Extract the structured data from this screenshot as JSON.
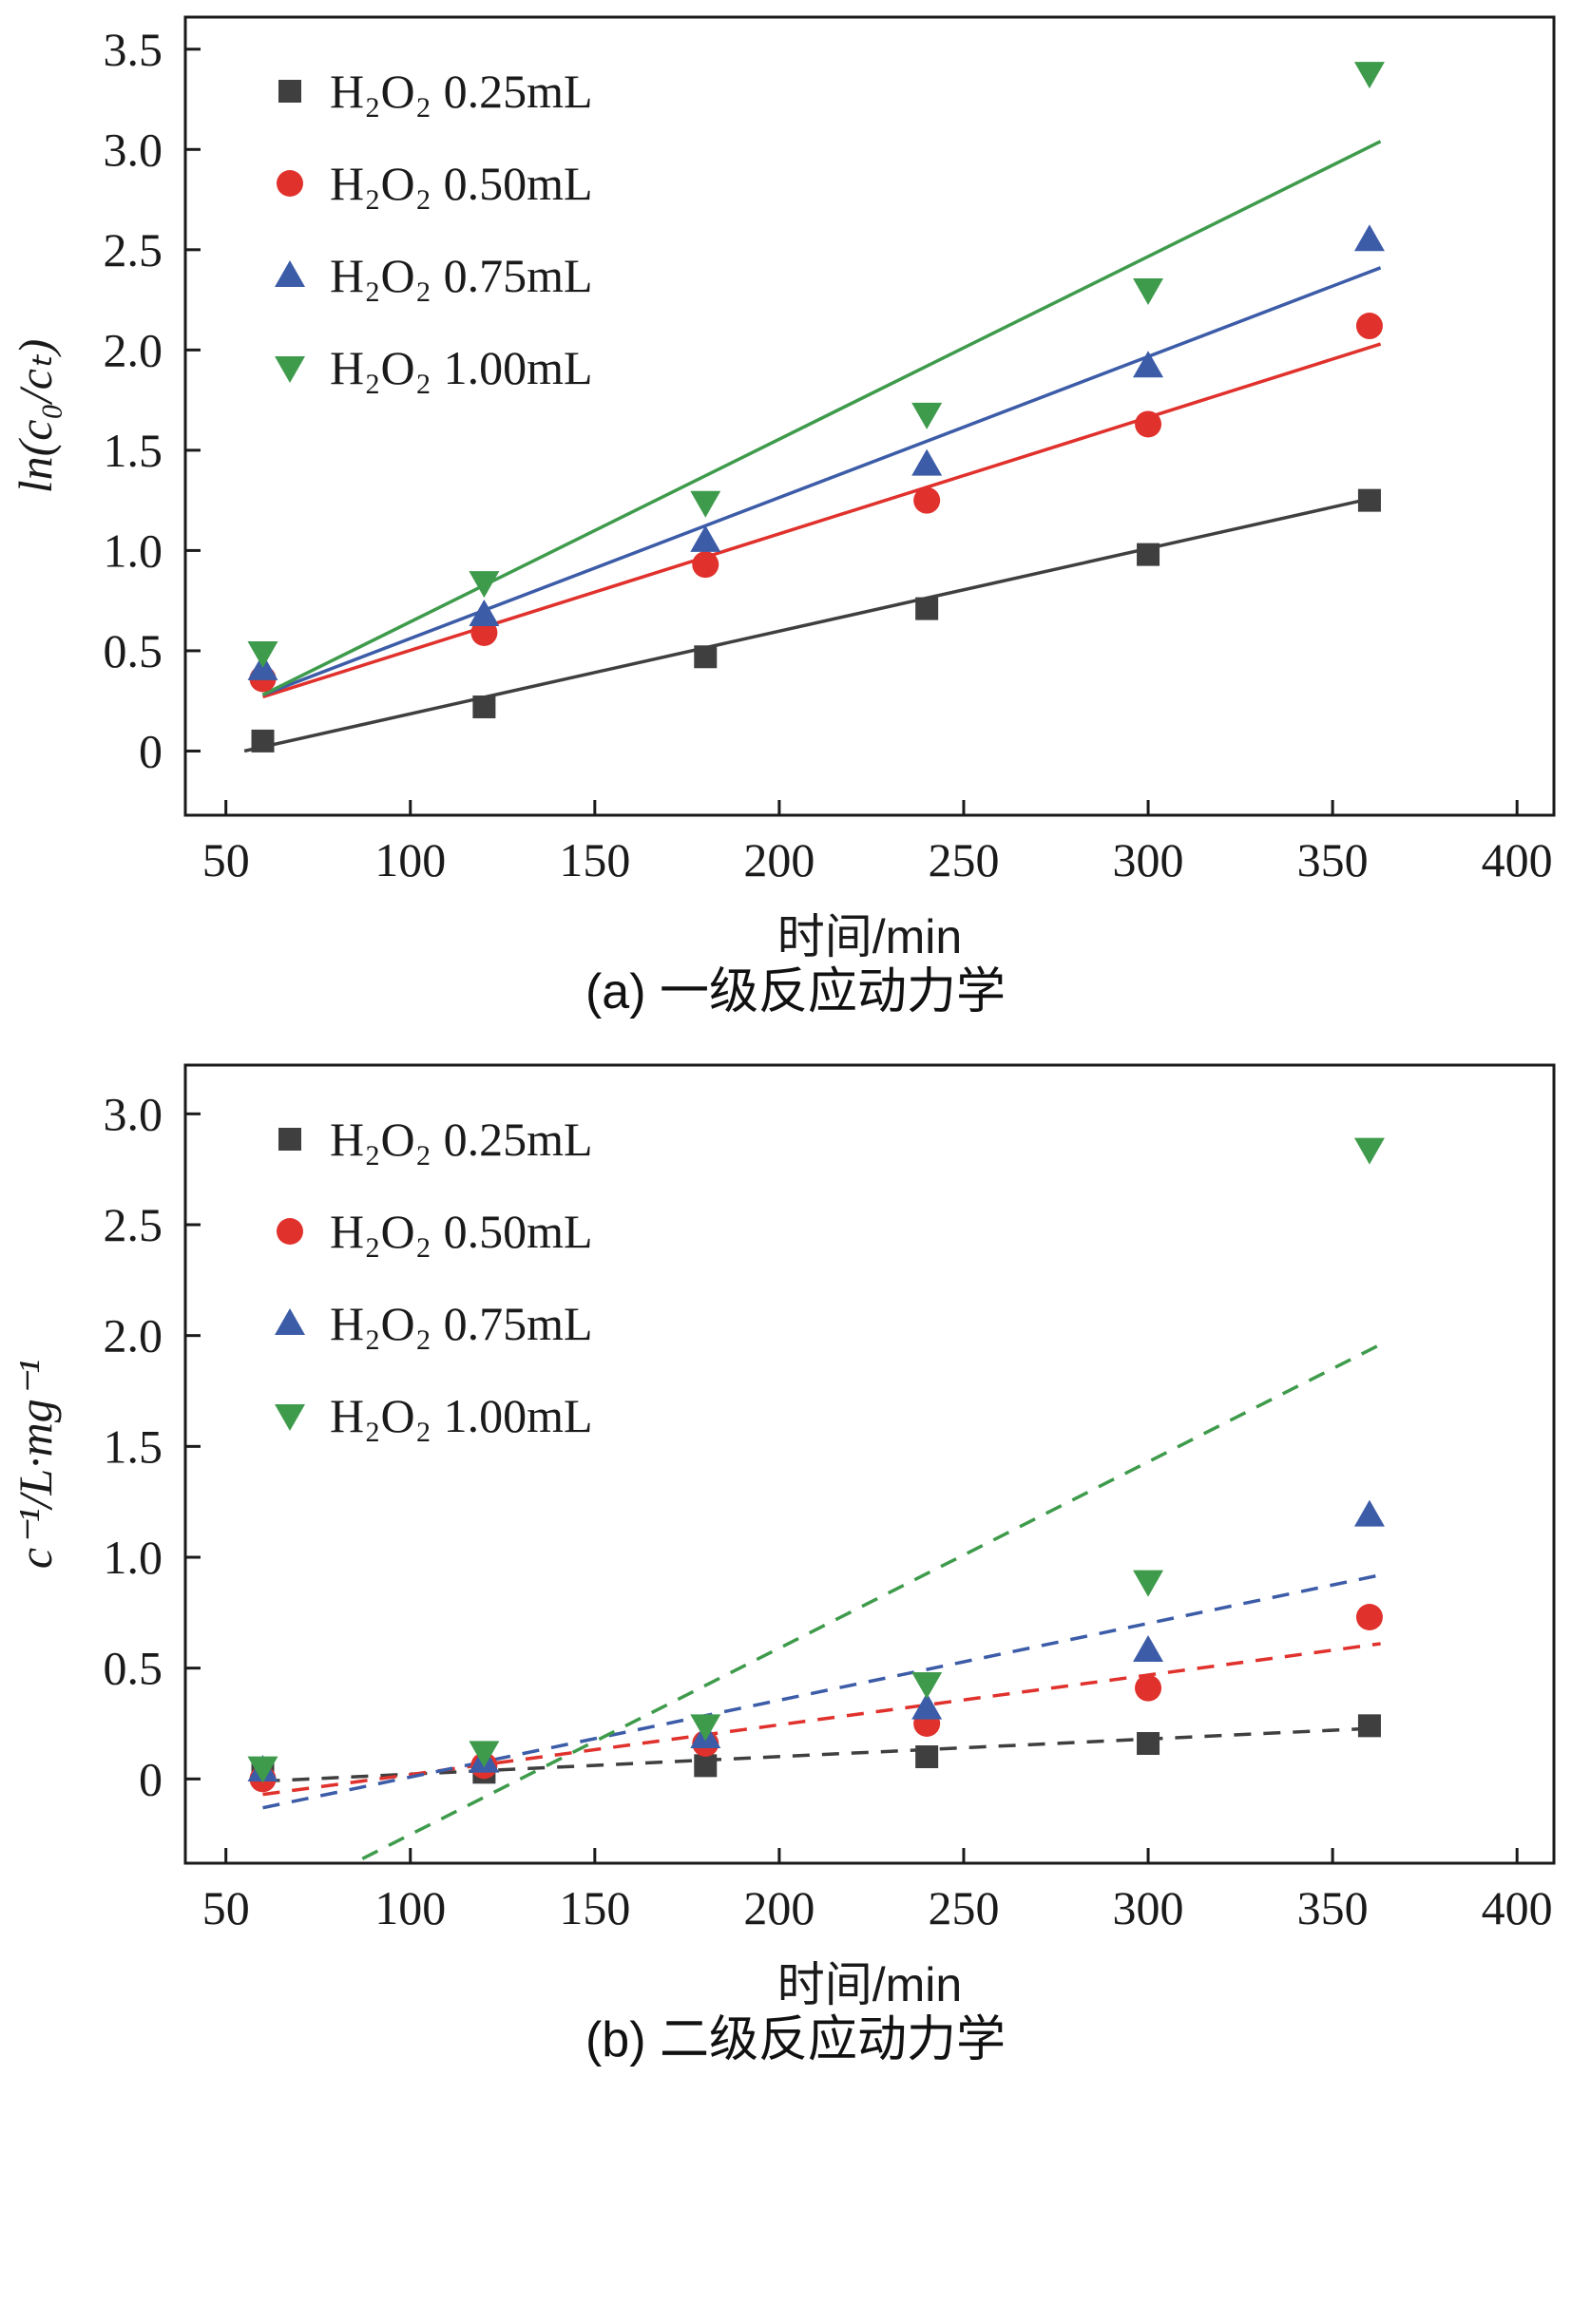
{
  "figure": {
    "background": "#ffffff",
    "frame_color": "#1a1a1a"
  },
  "chart_data": [
    {
      "id": "panel-a",
      "type": "scatter",
      "title": "(a) 一级反应动力学",
      "xlabel": "时间/min",
      "ylabel": "ln(c₀/cₜ)",
      "x": [
        60,
        120,
        180,
        240,
        300,
        360
      ],
      "xlim": [
        39,
        410
      ],
      "ylim": [
        -0.32,
        3.66
      ],
      "xticks": [
        50,
        100,
        150,
        200,
        250,
        300,
        350,
        400
      ],
      "yticks": [
        0,
        0.5,
        1.0,
        1.5,
        2.0,
        2.5,
        3.0,
        3.5
      ],
      "grid": "off",
      "legend_position": "upper-left",
      "line_style": "solid",
      "series": [
        {
          "name": "H₂O₂ 0.25mL",
          "marker": "square",
          "color": "#3f3f3f",
          "values": [
            0.05,
            0.22,
            0.47,
            0.71,
            0.98,
            1.25
          ],
          "fit": {
            "x1": 55,
            "y1": 0.0,
            "x2": 363,
            "y2": 1.27
          }
        },
        {
          "name": "H₂O₂ 0.50mL",
          "marker": "circle",
          "color": "#e0312c",
          "values": [
            0.36,
            0.59,
            0.93,
            1.25,
            1.63,
            2.12
          ],
          "fit": {
            "x1": 60,
            "y1": 0.27,
            "x2": 363,
            "y2": 2.03
          }
        },
        {
          "name": "H₂O₂ 0.75mL",
          "marker": "triangle-up",
          "color": "#3c5ca8",
          "values": [
            0.41,
            0.68,
            1.05,
            1.43,
            1.92,
            2.55
          ],
          "fit": {
            "x1": 60,
            "y1": 0.28,
            "x2": 363,
            "y2": 2.41
          }
        },
        {
          "name": "H₂O₂ 1.00mL",
          "marker": "triangle-down",
          "color": "#3f9b4c",
          "values": [
            0.49,
            0.84,
            1.24,
            1.68,
            2.3,
            3.38
          ],
          "fit": {
            "x1": 60,
            "y1": 0.28,
            "x2": 363,
            "y2": 3.04
          }
        }
      ]
    },
    {
      "id": "panel-b",
      "type": "scatter",
      "title": "(b) 二级反应动力学",
      "xlabel": "时间/min",
      "ylabel": "c⁻¹/L·mg⁻¹",
      "x": [
        60,
        120,
        180,
        240,
        300,
        360
      ],
      "xlim": [
        39,
        410
      ],
      "ylim": [
        -0.38,
        3.22
      ],
      "xticks": [
        50,
        100,
        150,
        200,
        250,
        300,
        350,
        400
      ],
      "yticks": [
        0,
        0.5,
        1.0,
        1.5,
        2.0,
        2.5,
        3.0
      ],
      "grid": "off",
      "legend_position": "upper-left",
      "line_style": "dashed",
      "series": [
        {
          "name": "H₂O₂ 0.25mL",
          "marker": "square",
          "color": "#3f3f3f",
          "values": [
            0.02,
            0.03,
            0.06,
            0.1,
            0.16,
            0.24
          ],
          "fit": {
            "x1": 60,
            "y1": -0.01,
            "x2": 363,
            "y2": 0.23
          }
        },
        {
          "name": "H₂O₂ 0.50mL",
          "marker": "circle",
          "color": "#e0312c",
          "values": [
            0.0,
            0.06,
            0.16,
            0.25,
            0.41,
            0.73
          ],
          "fit": {
            "x1": 60,
            "y1": -0.07,
            "x2": 363,
            "y2": 0.61
          }
        },
        {
          "name": "H₂O₂ 0.75mL",
          "marker": "triangle-up",
          "color": "#3c5ca8",
          "values": [
            0.04,
            0.08,
            0.19,
            0.32,
            0.58,
            1.19
          ],
          "fit": {
            "x1": 60,
            "y1": -0.13,
            "x2": 363,
            "y2": 0.92
          }
        },
        {
          "name": "H₂O₂ 1.00mL",
          "marker": "triangle-down",
          "color": "#3f9b4c",
          "values": [
            0.05,
            0.12,
            0.24,
            0.43,
            0.89,
            2.84
          ],
          "fit": {
            "x1": 87,
            "y1": -0.36,
            "x2": 363,
            "y2": 1.96
          }
        }
      ]
    }
  ]
}
